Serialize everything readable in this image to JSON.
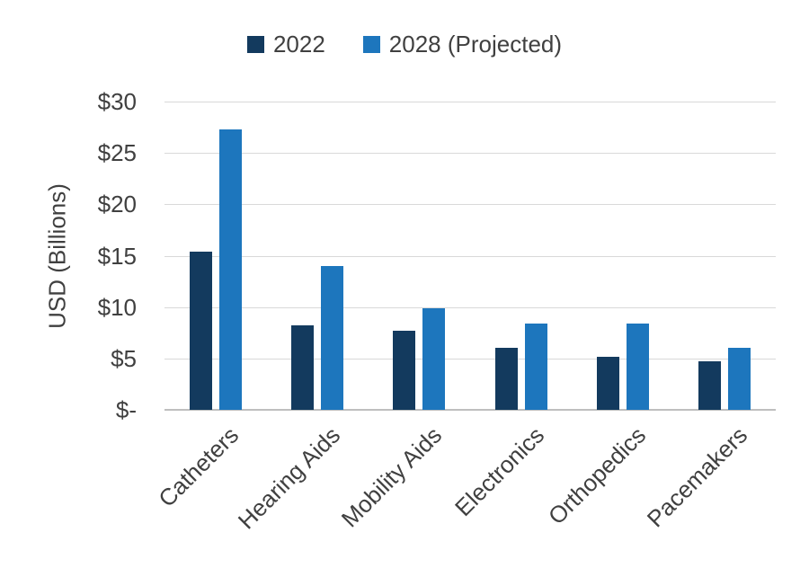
{
  "chart_data": {
    "type": "bar",
    "title": "",
    "categories": [
      "Catheters",
      "Hearing Aids",
      "Mobility Aids",
      "Electronics",
      "Orthopedics",
      "Pacemakers"
    ],
    "series": [
      {
        "name": "2022",
        "color": "#133a5e",
        "values": [
          15.4,
          8.2,
          7.7,
          6.0,
          5.2,
          4.7
        ]
      },
      {
        "name": "2028 (Projected)",
        "color": "#1d76bd",
        "values": [
          27.3,
          14.0,
          9.9,
          8.4,
          8.4,
          6.0
        ]
      }
    ],
    "xlabel": "",
    "ylabel": "USD (Billions)",
    "ylim": [
      0,
      30
    ],
    "ytick_step": 5,
    "yticks": [
      {
        "value": 0,
        "label": "$-"
      },
      {
        "value": 5,
        "label": "$5"
      },
      {
        "value": 10,
        "label": "$10"
      },
      {
        "value": 15,
        "label": "$15"
      },
      {
        "value": 20,
        "label": "$20"
      },
      {
        "value": 25,
        "label": "$25"
      },
      {
        "value": 30,
        "label": "$30"
      }
    ],
    "grid": true,
    "legend_position": "top",
    "colors": {
      "gridline": "#d9d9d9",
      "axis_line": "#bfbfbf",
      "text": "#404040",
      "background": "#ffffff"
    }
  }
}
